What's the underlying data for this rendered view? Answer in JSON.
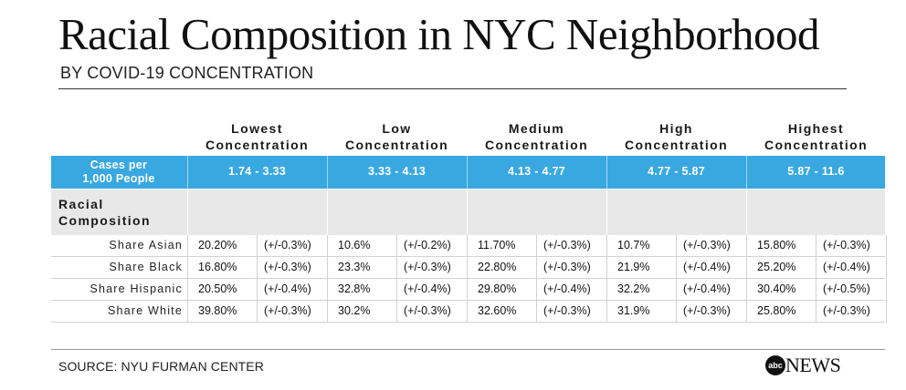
{
  "title": "Racial Composition in NYC Neighborhood",
  "subtitle": "BY COVID-19 CONCENTRATION",
  "columns": [
    {
      "line1": "Lowest",
      "line2": "Concentration",
      "range_low": "1.74",
      "range_high": "3.33"
    },
    {
      "line1": "Low",
      "line2": "Concentration",
      "range_low": "3.33",
      "range_high": "4.13"
    },
    {
      "line1": "Medium",
      "line2": "Concentration",
      "range_low": "4.13",
      "range_high": "4.77"
    },
    {
      "line1": "High",
      "line2": "Concentration",
      "range_low": "4.77",
      "range_high": "5.87"
    },
    {
      "line1": "Highest",
      "line2": "Concentration",
      "range_low": "5.87",
      "range_high": "11.6"
    }
  ],
  "cases_label": {
    "line1": "Cases per",
    "line2": "1,000 People"
  },
  "section_label": {
    "line1": "Racial",
    "line2": "Composition"
  },
  "rows": [
    {
      "label": "Share Asian",
      "cells": [
        [
          "20.20%",
          "(+/-0.3%)"
        ],
        [
          "10.6%",
          "(+/-0.2%)"
        ],
        [
          "11.70%",
          "(+/-0.3%)"
        ],
        [
          "10.7%",
          "(+/-0.3%)"
        ],
        [
          "15.80%",
          "(+/-0.3%)"
        ]
      ]
    },
    {
      "label": "Share Black",
      "cells": [
        [
          "16.80%",
          "(+/-0.3%)"
        ],
        [
          "23.3%",
          "(+/-0.3%)"
        ],
        [
          "22.80%",
          "(+/-0.3%)"
        ],
        [
          "21.9%",
          "(+/-0.4%)"
        ],
        [
          "25.20%",
          "(+/-0.4%)"
        ]
      ]
    },
    {
      "label": "Share Hispanic",
      "cells": [
        [
          "20.50%",
          "(+/-0.4%)"
        ],
        [
          "32.8%",
          "(+/-0.4%)"
        ],
        [
          "29.80%",
          "(+/-0.4%)"
        ],
        [
          "32.2%",
          "(+/-0.4%)"
        ],
        [
          "30.40%",
          "(+/-0.5%)"
        ]
      ]
    },
    {
      "label": "Share White",
      "cells": [
        [
          "39.80%",
          "(+/-0.3%)"
        ],
        [
          "30.2%",
          "(+/-0.3%)"
        ],
        [
          "32.60%",
          "(+/-0.3%)"
        ],
        [
          "31.9%",
          "(+/-0.3%)"
        ],
        [
          "25.80%",
          "(+/-0.3%)"
        ]
      ]
    }
  ],
  "source": "SOURCE: NYU FURMAN CENTER",
  "logo": {
    "circle": "abc",
    "word": "NEWS"
  },
  "colors": {
    "header_blue": "#39a8e0",
    "section_grey": "#e8e8e8"
  }
}
